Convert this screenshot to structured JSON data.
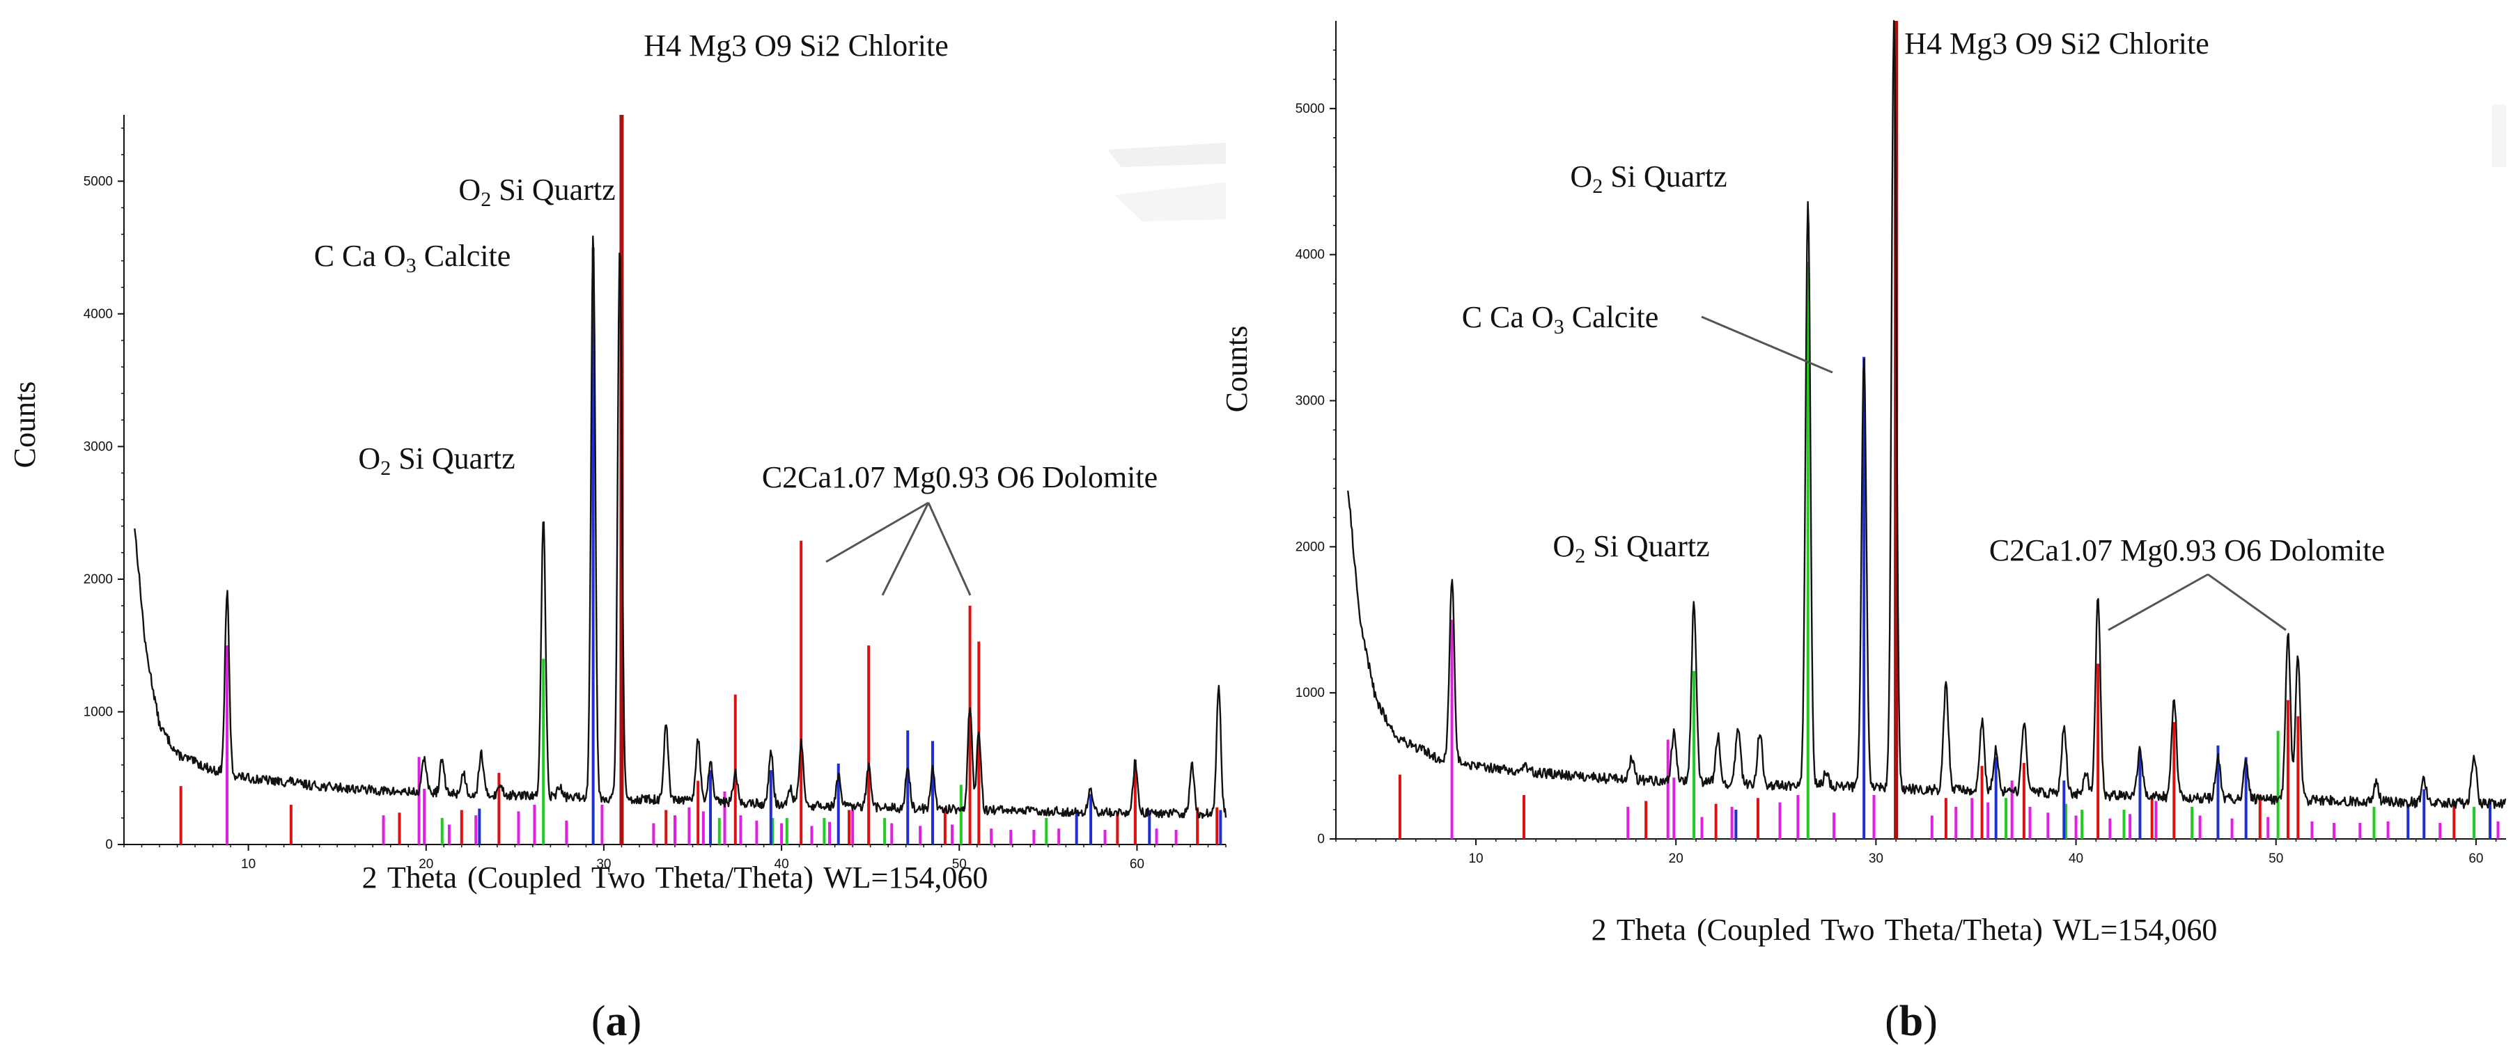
{
  "figure": {
    "panels": [
      {
        "label_open": "(",
        "label_letter": "a",
        "label_close": ")",
        "annotation_chlorite": "H4 Mg3 O9 Si2 Chlorite",
        "annotation_quartz_high": {
          "pre": "O",
          "sub": "2",
          "post": " Si Quartz"
        },
        "annotation_calcite": {
          "pre": "C Ca O",
          "sub": "3",
          "post": " Calcite"
        },
        "annotation_quartz_low": {
          "pre": "O",
          "sub": "2",
          "post": " Si Quartz"
        },
        "annotation_dolomite": "C2Ca1.07 Mg0.93 O6 Dolomite"
      },
      {
        "label_open": "(",
        "label_letter": "b",
        "label_close": ")",
        "annotation_chlorite": "H4 Mg3 O9 Si2 Chlorite",
        "annotation_quartz_high": {
          "pre": "O",
          "sub": "2",
          "post": " Si Quartz"
        },
        "annotation_calcite": {
          "pre": "C Ca O",
          "sub": "3",
          "post": " Calcite"
        },
        "annotation_quartz_low": {
          "pre": "O",
          "sub": "2",
          "post": " Si Quartz"
        },
        "annotation_dolomite": "C2Ca1.07 Mg0.93 O6 Dolomite"
      }
    ]
  },
  "colors": {
    "pattern": "#111111",
    "calcite": "#1f2fd0",
    "quartz": "#22cc22",
    "dolomite": "#dd1111",
    "chlorite": "#e020e0",
    "chlorite_main": "#aa1111",
    "leader": "#555555"
  },
  "chart_data": [
    {
      "type": "line",
      "title": "",
      "xlabel": "2 Theta (Coupled Two Theta/Theta) WL=154,060",
      "ylabel": "Counts",
      "xlim": [
        3,
        65
      ],
      "ylim": [
        0,
        5500
      ],
      "x_ticks": [
        10,
        20,
        30,
        40,
        50,
        60
      ],
      "y_ticks": [
        0,
        1000,
        2000,
        3000,
        4000,
        5000
      ],
      "background": {
        "start": 2400,
        "points": [
          [
            3.6,
            2400
          ],
          [
            4.2,
            1500
          ],
          [
            5,
            900
          ],
          [
            6,
            680
          ],
          [
            8,
            560
          ],
          [
            10,
            500
          ],
          [
            14,
            440
          ],
          [
            18,
            400
          ],
          [
            25,
            370
          ],
          [
            30,
            350
          ],
          [
            35,
            330
          ],
          [
            40,
            300
          ],
          [
            45,
            280
          ],
          [
            50,
            265
          ],
          [
            55,
            250
          ],
          [
            60,
            240
          ],
          [
            65,
            230
          ]
        ]
      },
      "pattern_peaks": [
        {
          "x": 6.2,
          "y": 600
        },
        {
          "x": 8.8,
          "y": 1900
        },
        {
          "x": 12.4,
          "y": 480
        },
        {
          "x": 17.8,
          "y": 380
        },
        {
          "x": 19.9,
          "y": 660
        },
        {
          "x": 20.9,
          "y": 640
        },
        {
          "x": 22.1,
          "y": 540
        },
        {
          "x": 23.1,
          "y": 700
        },
        {
          "x": 24.2,
          "y": 450
        },
        {
          "x": 26.6,
          "y": 2480
        },
        {
          "x": 27.5,
          "y": 440
        },
        {
          "x": 29.4,
          "y": 4600
        },
        {
          "x": 30.9,
          "y": 4500
        },
        {
          "x": 33.5,
          "y": 900
        },
        {
          "x": 35.3,
          "y": 800
        },
        {
          "x": 36.0,
          "y": 620
        },
        {
          "x": 37.4,
          "y": 540
        },
        {
          "x": 39.4,
          "y": 700
        },
        {
          "x": 40.5,
          "y": 420
        },
        {
          "x": 41.1,
          "y": 760
        },
        {
          "x": 43.2,
          "y": 520
        },
        {
          "x": 44.9,
          "y": 580
        },
        {
          "x": 47.1,
          "y": 580
        },
        {
          "x": 48.5,
          "y": 560
        },
        {
          "x": 50.6,
          "y": 1050
        },
        {
          "x": 51.1,
          "y": 830
        },
        {
          "x": 57.4,
          "y": 420
        },
        {
          "x": 59.9,
          "y": 620
        },
        {
          "x": 63.1,
          "y": 600
        },
        {
          "x": 64.6,
          "y": 1200
        }
      ],
      "reference_lines": {
        "calcite": [
          [
            23.0,
            270
          ],
          [
            29.4,
            4500
          ],
          [
            36.0,
            560
          ],
          [
            39.4,
            560
          ],
          [
            43.2,
            610
          ],
          [
            47.1,
            860
          ],
          [
            48.5,
            780
          ],
          [
            56.6,
            260
          ],
          [
            57.4,
            380
          ],
          [
            60.7,
            260
          ],
          [
            64.7,
            260
          ]
        ],
        "quartz": [
          [
            20.9,
            200
          ],
          [
            26.6,
            1400
          ],
          [
            36.5,
            200
          ],
          [
            39.5,
            200
          ],
          [
            40.3,
            200
          ],
          [
            42.4,
            200
          ],
          [
            45.8,
            200
          ],
          [
            50.1,
            450
          ],
          [
            54.9,
            200
          ],
          [
            59.9,
            300
          ]
        ],
        "dolomite": [
          [
            6.2,
            440
          ],
          [
            12.4,
            300
          ],
          [
            18.5,
            240
          ],
          [
            22.0,
            260
          ],
          [
            24.1,
            540
          ],
          [
            31.0,
            4500
          ],
          [
            33.5,
            260
          ],
          [
            35.3,
            480
          ],
          [
            37.4,
            1130
          ],
          [
            41.1,
            2290
          ],
          [
            43.8,
            260
          ],
          [
            44.9,
            1500
          ],
          [
            49.2,
            280
          ],
          [
            50.6,
            1800
          ],
          [
            51.1,
            1530
          ],
          [
            58.9,
            240
          ],
          [
            59.9,
            640
          ],
          [
            63.4,
            280
          ],
          [
            64.5,
            280
          ]
        ],
        "chlorite": [
          [
            8.8,
            1500
          ],
          [
            17.6,
            220
          ],
          [
            19.6,
            660
          ],
          [
            19.9,
            420
          ],
          [
            21.3,
            150
          ],
          [
            22.8,
            220
          ],
          [
            25.2,
            250
          ],
          [
            26.1,
            300
          ],
          [
            27.9,
            180
          ],
          [
            29.9,
            300
          ],
          [
            32.8,
            160
          ],
          [
            34.0,
            220
          ],
          [
            34.8,
            280
          ],
          [
            35.6,
            250
          ],
          [
            36.8,
            400
          ],
          [
            37.7,
            220
          ],
          [
            38.6,
            180
          ],
          [
            40.0,
            160
          ],
          [
            41.7,
            140
          ],
          [
            42.7,
            170
          ],
          [
            44.0,
            260
          ],
          [
            46.2,
            160
          ],
          [
            47.8,
            140
          ],
          [
            49.6,
            150
          ],
          [
            51.8,
            120
          ],
          [
            52.9,
            110
          ],
          [
            54.2,
            110
          ],
          [
            55.6,
            120
          ],
          [
            58.2,
            110
          ],
          [
            61.1,
            120
          ],
          [
            62.2,
            110
          ]
        ]
      }
    },
    {
      "type": "line",
      "title": "",
      "xlabel": "2 Theta (Coupled Two Theta/Theta) WL=154,060",
      "ylabel": "Counts",
      "xlim": [
        3,
        61.5
      ],
      "ylim": [
        0,
        5600
      ],
      "x_ticks": [
        10,
        20,
        30,
        40,
        50,
        60
      ],
      "y_ticks": [
        0,
        1000,
        2000,
        3000,
        4000,
        5000
      ],
      "background": {
        "start": 2400,
        "points": [
          [
            3.6,
            2400
          ],
          [
            4.2,
            1500
          ],
          [
            5,
            950
          ],
          [
            6,
            700
          ],
          [
            8,
            560
          ],
          [
            10,
            500
          ],
          [
            14,
            440
          ],
          [
            18,
            400
          ],
          [
            25,
            370
          ],
          [
            30,
            350
          ],
          [
            35,
            330
          ],
          [
            40,
            305
          ],
          [
            45,
            285
          ],
          [
            50,
            270
          ],
          [
            55,
            255
          ],
          [
            61.5,
            240
          ]
        ]
      },
      "pattern_peaks": [
        {
          "x": 6.2,
          "y": 620
        },
        {
          "x": 8.8,
          "y": 1780
        },
        {
          "x": 12.4,
          "y": 500
        },
        {
          "x": 17.8,
          "y": 560
        },
        {
          "x": 19.9,
          "y": 720
        },
        {
          "x": 20.9,
          "y": 1620
        },
        {
          "x": 22.1,
          "y": 700
        },
        {
          "x": 23.1,
          "y": 760
        },
        {
          "x": 24.2,
          "y": 740
        },
        {
          "x": 26.6,
          "y": 4400
        },
        {
          "x": 27.5,
          "y": 450
        },
        {
          "x": 29.4,
          "y": 3300
        },
        {
          "x": 30.9,
          "y": 5600
        },
        {
          "x": 33.5,
          "y": 1080
        },
        {
          "x": 35.3,
          "y": 800
        },
        {
          "x": 36.0,
          "y": 620
        },
        {
          "x": 37.4,
          "y": 800
        },
        {
          "x": 39.4,
          "y": 780
        },
        {
          "x": 40.5,
          "y": 450
        },
        {
          "x": 41.1,
          "y": 1650
        },
        {
          "x": 43.2,
          "y": 620
        },
        {
          "x": 44.9,
          "y": 980
        },
        {
          "x": 47.1,
          "y": 560
        },
        {
          "x": 48.5,
          "y": 520
        },
        {
          "x": 50.6,
          "y": 1420
        },
        {
          "x": 51.1,
          "y": 1250
        },
        {
          "x": 55.0,
          "y": 380
        },
        {
          "x": 57.4,
          "y": 400
        },
        {
          "x": 59.9,
          "y": 580
        }
      ],
      "reference_lines": {
        "calcite": [
          [
            23.0,
            200
          ],
          [
            29.4,
            3300
          ],
          [
            36.0,
            560
          ],
          [
            39.4,
            400
          ],
          [
            43.2,
            600
          ],
          [
            47.1,
            640
          ],
          [
            48.5,
            560
          ],
          [
            56.6,
            240
          ],
          [
            57.4,
            340
          ],
          [
            60.7,
            260
          ]
        ],
        "quartz": [
          [
            20.9,
            1150
          ],
          [
            26.6,
            3950
          ],
          [
            36.5,
            280
          ],
          [
            39.5,
            240
          ],
          [
            40.3,
            200
          ],
          [
            42.4,
            200
          ],
          [
            45.8,
            220
          ],
          [
            50.1,
            740
          ],
          [
            54.9,
            220
          ],
          [
            59.9,
            220
          ]
        ],
        "dolomite": [
          [
            6.2,
            440
          ],
          [
            12.4,
            300
          ],
          [
            18.5,
            260
          ],
          [
            22.0,
            240
          ],
          [
            24.1,
            280
          ],
          [
            31.0,
            5600
          ],
          [
            33.5,
            280
          ],
          [
            35.3,
            500
          ],
          [
            37.4,
            520
          ],
          [
            41.1,
            1200
          ],
          [
            43.8,
            280
          ],
          [
            44.9,
            800
          ],
          [
            49.2,
            300
          ],
          [
            50.6,
            950
          ],
          [
            51.1,
            840
          ],
          [
            58.9,
            260
          ]
        ],
        "chlorite": [
          [
            8.8,
            1500
          ],
          [
            17.6,
            220
          ],
          [
            19.6,
            680
          ],
          [
            19.9,
            420
          ],
          [
            21.3,
            150
          ],
          [
            22.8,
            220
          ],
          [
            25.2,
            250
          ],
          [
            26.1,
            300
          ],
          [
            27.9,
            180
          ],
          [
            29.9,
            300
          ],
          [
            32.8,
            160
          ],
          [
            34.0,
            220
          ],
          [
            34.8,
            280
          ],
          [
            35.6,
            250
          ],
          [
            36.8,
            400
          ],
          [
            37.7,
            220
          ],
          [
            38.6,
            180
          ],
          [
            40.0,
            160
          ],
          [
            41.7,
            140
          ],
          [
            42.7,
            170
          ],
          [
            44.0,
            260
          ],
          [
            46.2,
            160
          ],
          [
            47.8,
            140
          ],
          [
            49.6,
            150
          ],
          [
            51.8,
            120
          ],
          [
            52.9,
            110
          ],
          [
            54.2,
            110
          ],
          [
            55.6,
            120
          ],
          [
            58.2,
            110
          ],
          [
            61.1,
            120
          ]
        ]
      }
    }
  ]
}
